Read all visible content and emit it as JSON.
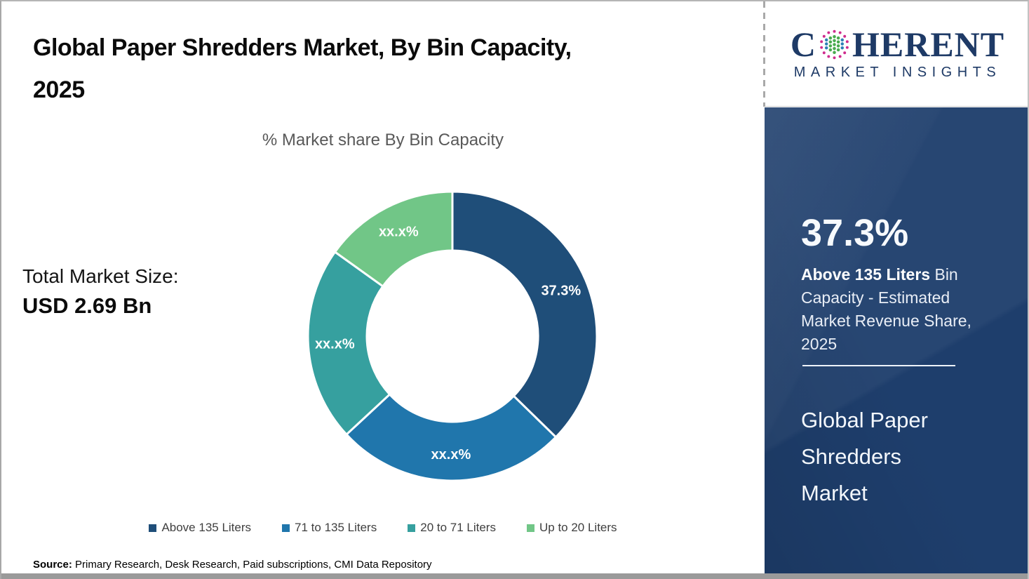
{
  "header": {
    "title_line1": "Global Paper Shredders Market, By Bin Capacity,",
    "title_line2": "2025"
  },
  "stats": {
    "total_label": "Total Market Size:",
    "total_value": "USD 2.69 Bn"
  },
  "chart_data": {
    "type": "pie",
    "subtype": "donut",
    "title": "% Market share By Bin Capacity",
    "start_angle_deg": 0,
    "inner_radius_ratio": 0.59,
    "series": [
      {
        "name": "Above 135 Liters",
        "value": 37.3,
        "label": "37.3%",
        "color": "#1F4E79"
      },
      {
        "name": "71 to 135 Liters",
        "value": 25.8,
        "label": "xx.x%",
        "color": "#2076AC"
      },
      {
        "name": "20 to 71 Liters",
        "value": 21.8,
        "label": "xx.x%",
        "color": "#36A09F"
      },
      {
        "name": "Up to 20 Liters",
        "value": 15.1,
        "label": "xx.x%",
        "color": "#71C687"
      }
    ],
    "legend_position": "bottom"
  },
  "source": {
    "prefix": "Source:",
    "text": " Primary Research, Desk Research, Paid subscriptions, CMI Data Repository"
  },
  "logo": {
    "word_start": "C",
    "word_end": "HERENT",
    "subtitle": "MARKET INSIGHTS",
    "navy": "#1e3a66"
  },
  "panel": {
    "highlight_value": "37.3%",
    "highlight_bold": "Above 135 Liters",
    "highlight_rest": " Bin Capacity - Estimated Market Revenue Share, 2025",
    "market_name": "Global Paper Shredders Market",
    "background": "#1e3e6c"
  }
}
